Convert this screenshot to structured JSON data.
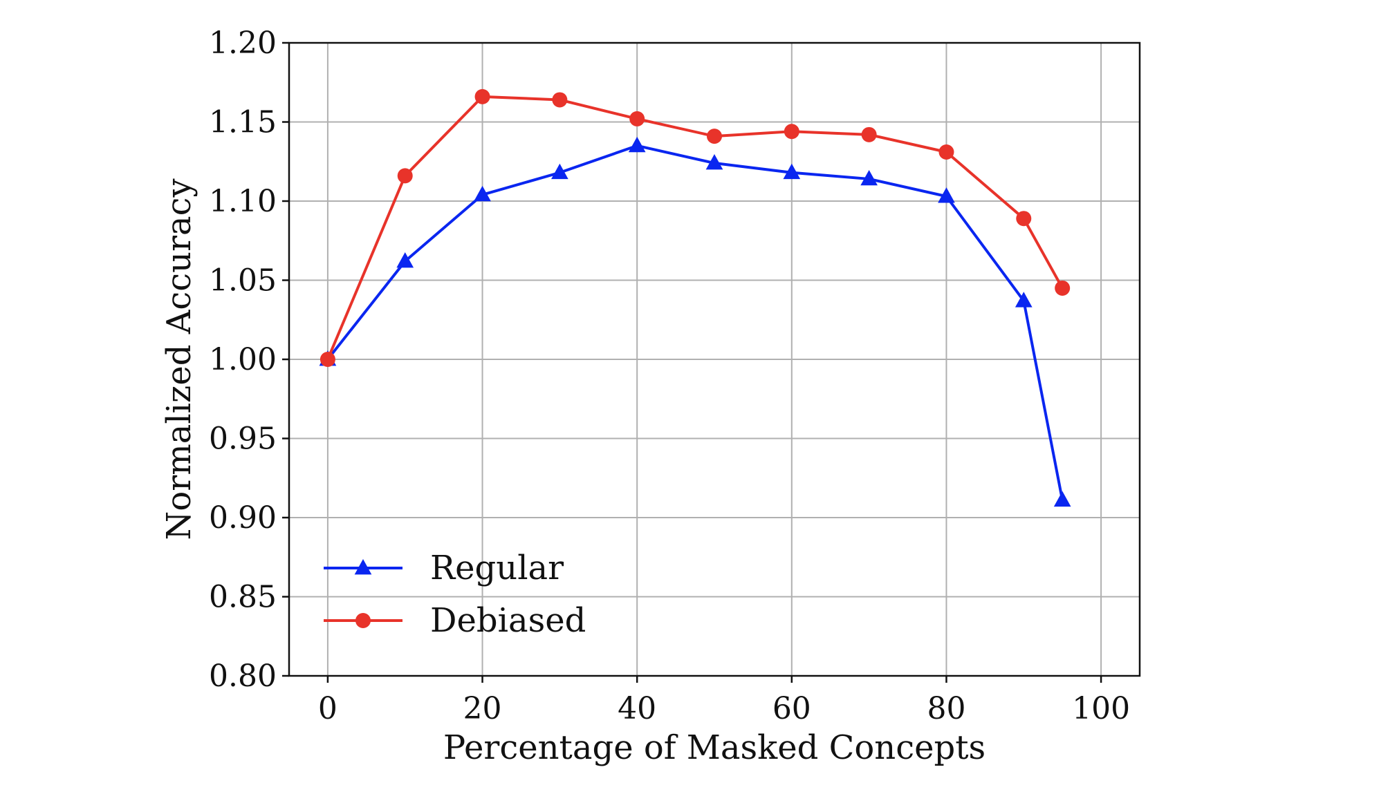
{
  "chart_data": {
    "type": "line",
    "title": "",
    "xlabel": "Percentage of Masked Concepts",
    "ylabel": "Normalized Accuracy",
    "xlim": [
      -5,
      105
    ],
    "ylim": [
      0.8,
      1.2
    ],
    "xticks": [
      0,
      20,
      40,
      60,
      80,
      100
    ],
    "xtick_labels": [
      "0",
      "20",
      "40",
      "60",
      "80",
      "100"
    ],
    "yticks": [
      0.8,
      0.85,
      0.9,
      0.95,
      1.0,
      1.05,
      1.1,
      1.15,
      1.2
    ],
    "ytick_labels": [
      "0.80",
      "0.85",
      "0.90",
      "0.95",
      "1.00",
      "1.05",
      "1.10",
      "1.15",
      "1.20"
    ],
    "grid": true,
    "legend_position": "lower-left",
    "x": [
      0,
      10,
      20,
      30,
      40,
      50,
      60,
      70,
      80,
      90,
      95
    ],
    "series": [
      {
        "name": "Regular",
        "color": "#0a26f0",
        "marker": "triangle",
        "values": [
          1.0,
          1.062,
          1.104,
          1.118,
          1.135,
          1.124,
          1.118,
          1.114,
          1.103,
          1.037,
          0.911
        ]
      },
      {
        "name": "Debiased",
        "color": "#e8332a",
        "marker": "circle",
        "values": [
          1.0,
          1.116,
          1.166,
          1.164,
          1.152,
          1.141,
          1.144,
          1.142,
          1.131,
          1.089,
          1.045
        ]
      }
    ]
  }
}
